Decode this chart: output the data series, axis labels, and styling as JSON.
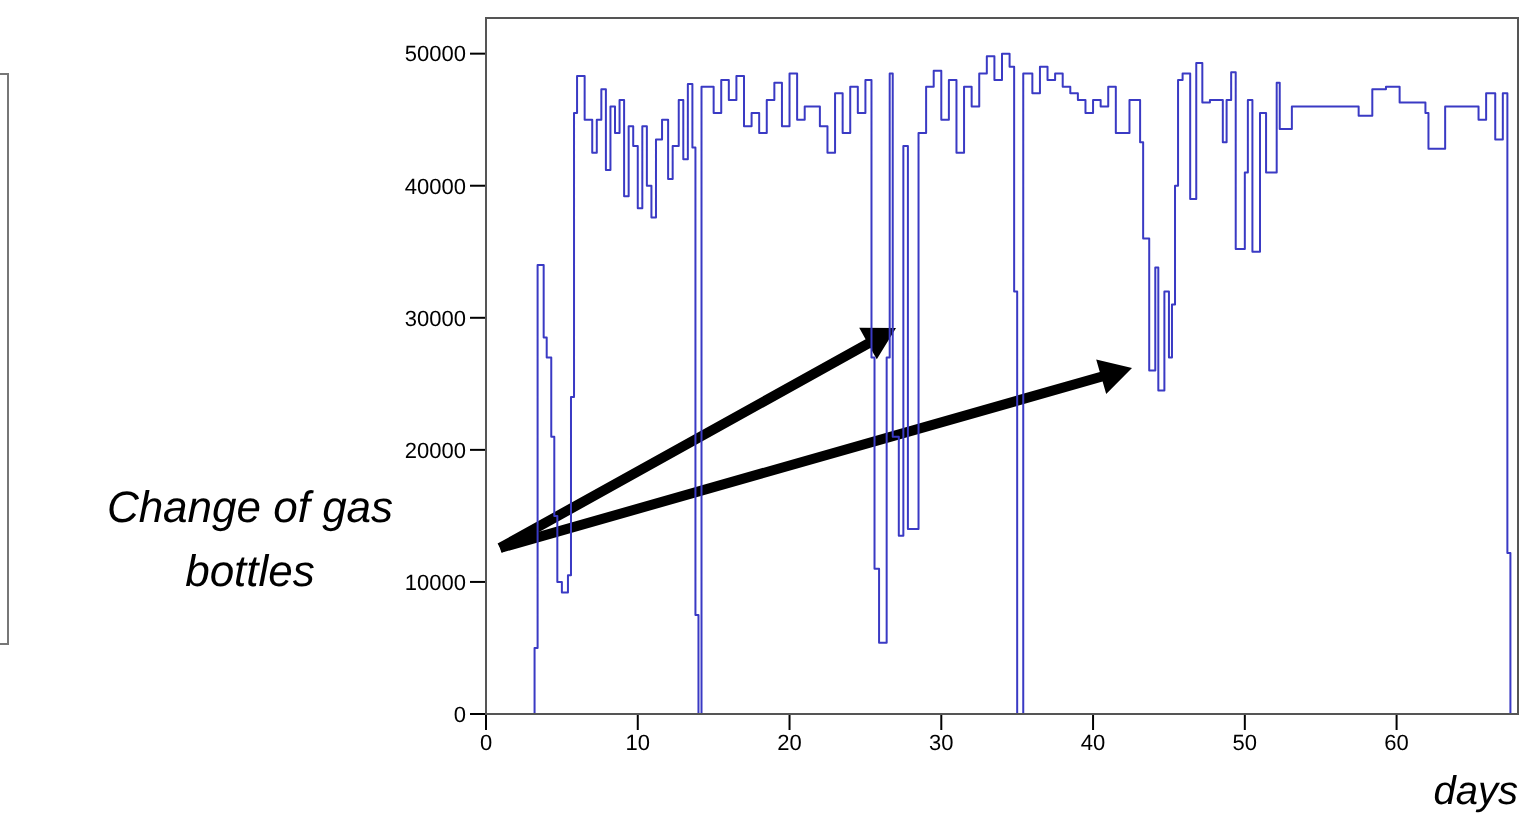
{
  "chart_data": {
    "type": "step",
    "xlabel": "days",
    "annotations": [
      "Change of gas bottles"
    ],
    "xlim": [
      0,
      68
    ],
    "ylim": [
      0,
      52700
    ],
    "xticks": [
      0,
      10,
      20,
      30,
      40,
      50,
      60
    ],
    "yticks": [
      0,
      10000,
      20000,
      30000,
      40000,
      50000
    ],
    "grid": false,
    "legend": false,
    "series": [
      {
        "color": "#3a3ac4",
        "x": [
          0,
          3.2,
          3.4,
          3.8,
          4.0,
          4.3,
          4.5,
          4.7,
          5.0,
          5.4,
          5.6,
          5.8,
          6.0,
          6.5,
          7.0,
          7.3,
          7.6,
          7.9,
          8.2,
          8.5,
          8.8,
          9.1,
          9.4,
          9.7,
          10.0,
          10.3,
          10.6,
          10.9,
          11.2,
          11.6,
          12.0,
          12.3,
          12.7,
          13.0,
          13.3,
          13.6,
          13.8,
          14.0,
          14.2,
          15.0,
          15.5,
          16.0,
          16.5,
          17.0,
          17.5,
          18.0,
          18.5,
          19.0,
          19.5,
          20.0,
          20.5,
          21.0,
          22.0,
          22.5,
          23.0,
          23.5,
          24.0,
          24.5,
          25.0,
          25.4,
          25.6,
          25.9,
          26.4,
          26.6,
          26.8,
          27.2,
          27.5,
          27.8,
          28.5,
          29.0,
          29.5,
          30.0,
          30.5,
          31.0,
          31.5,
          32.0,
          32.5,
          33.0,
          33.5,
          34.0,
          34.5,
          34.8,
          35.0,
          35.4,
          36.0,
          36.5,
          37.0,
          37.5,
          38.0,
          38.5,
          39.0,
          39.5,
          40.0,
          40.5,
          41.0,
          41.5,
          42.4,
          43.1,
          43.3,
          43.7,
          44.1,
          44.3,
          44.7,
          45.0,
          45.2,
          45.4,
          45.6,
          45.9,
          46.4,
          46.8,
          47.2,
          47.7,
          48.55,
          48.8,
          49.1,
          49.4,
          50.0,
          50.2,
          50.5,
          51.0,
          51.4,
          52.1,
          52.3,
          53.1,
          57.5,
          58.4,
          59.3,
          60.2,
          61.9,
          62.1,
          63.2,
          65.4,
          65.9,
          66.5,
          67.0,
          67.3,
          67.5
        ],
        "values": [
          0,
          5000,
          34000,
          28500,
          27000,
          21000,
          15000,
          10000,
          9200,
          10500,
          24000,
          45500,
          48300,
          45000,
          42500,
          45000,
          47300,
          41200,
          46000,
          44000,
          46500,
          39200,
          44500,
          43000,
          38300,
          44500,
          40000,
          37600,
          43500,
          45000,
          40500,
          43000,
          46500,
          42000,
          47700,
          42900,
          7500,
          0,
          47500,
          45500,
          48000,
          46500,
          48300,
          44500,
          45500,
          44000,
          46500,
          47800,
          44500,
          48500,
          45000,
          46000,
          44500,
          42500,
          47000,
          44000,
          47500,
          45500,
          48000,
          27000,
          11000,
          5400,
          27000,
          48500,
          21000,
          13500,
          43000,
          14000,
          44000,
          47500,
          48700,
          45000,
          48000,
          42500,
          47500,
          46000,
          48500,
          49800,
          48000,
          50000,
          49000,
          32000,
          0,
          48500,
          47000,
          49000,
          48000,
          48500,
          47500,
          47000,
          46500,
          45500,
          46500,
          46000,
          47500,
          44000,
          46500,
          43300,
          36000,
          26000,
          33800,
          24500,
          32000,
          27000,
          31000,
          40000,
          48000,
          48500,
          39000,
          49300,
          46300,
          46500,
          43300,
          46500,
          48600,
          35200,
          41000,
          46500,
          35000,
          45500,
          41000,
          47800,
          44300,
          46000,
          45300,
          47300,
          47500,
          46300,
          45500,
          42800,
          46000,
          45000,
          47000,
          43500,
          47000,
          12200,
          0
        ]
      }
    ]
  }
}
